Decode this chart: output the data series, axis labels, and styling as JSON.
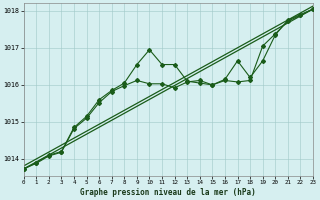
{
  "xlabel": "Graphe pression niveau de la mer (hPa)",
  "xlim": [
    0,
    23
  ],
  "ylim": [
    1013.55,
    1018.2
  ],
  "yticks": [
    1014,
    1015,
    1016,
    1017,
    1018
  ],
  "xticks": [
    0,
    1,
    2,
    3,
    4,
    5,
    6,
    7,
    8,
    9,
    10,
    11,
    12,
    13,
    14,
    15,
    16,
    17,
    18,
    19,
    20,
    21,
    22,
    23
  ],
  "background_color": "#d6eff0",
  "grid_color": "#a0c8c8",
  "line_color": "#1a5c1a",
  "trend1_x": [
    0,
    23
  ],
  "trend1_y": [
    1013.73,
    1018.05
  ],
  "trend2_x": [
    0,
    23
  ],
  "trend2_y": [
    1013.73,
    1018.05
  ],
  "jagged_x": [
    0,
    1,
    2,
    3,
    4,
    5,
    6,
    7,
    8,
    9,
    10,
    11,
    12,
    13,
    14,
    15,
    16,
    17,
    18,
    19,
    20,
    21,
    22,
    23
  ],
  "jagged_y": [
    1013.73,
    1013.9,
    1014.1,
    1014.2,
    1014.85,
    1015.15,
    1015.6,
    1015.85,
    1016.05,
    1016.55,
    1016.95,
    1016.55,
    1016.55,
    1016.1,
    1016.05,
    1016.0,
    1016.15,
    1016.65,
    1016.2,
    1016.65,
    1017.35,
    1017.75,
    1017.9,
    1018.05
  ],
  "smooth_x": [
    0,
    1,
    2,
    3,
    4,
    5,
    6,
    7,
    8,
    9,
    10,
    11,
    12,
    13,
    14,
    15,
    16,
    17,
    18,
    19,
    20,
    21,
    22,
    23
  ],
  "smooth_y": [
    1013.73,
    1013.88,
    1014.08,
    1014.18,
    1014.82,
    1015.1,
    1015.52,
    1015.82,
    1015.98,
    1016.12,
    1016.03,
    1016.03,
    1015.92,
    1016.08,
    1016.12,
    1016.0,
    1016.12,
    1016.08,
    1016.12,
    1017.05,
    1017.38,
    1017.72,
    1017.88,
    1018.05
  ]
}
